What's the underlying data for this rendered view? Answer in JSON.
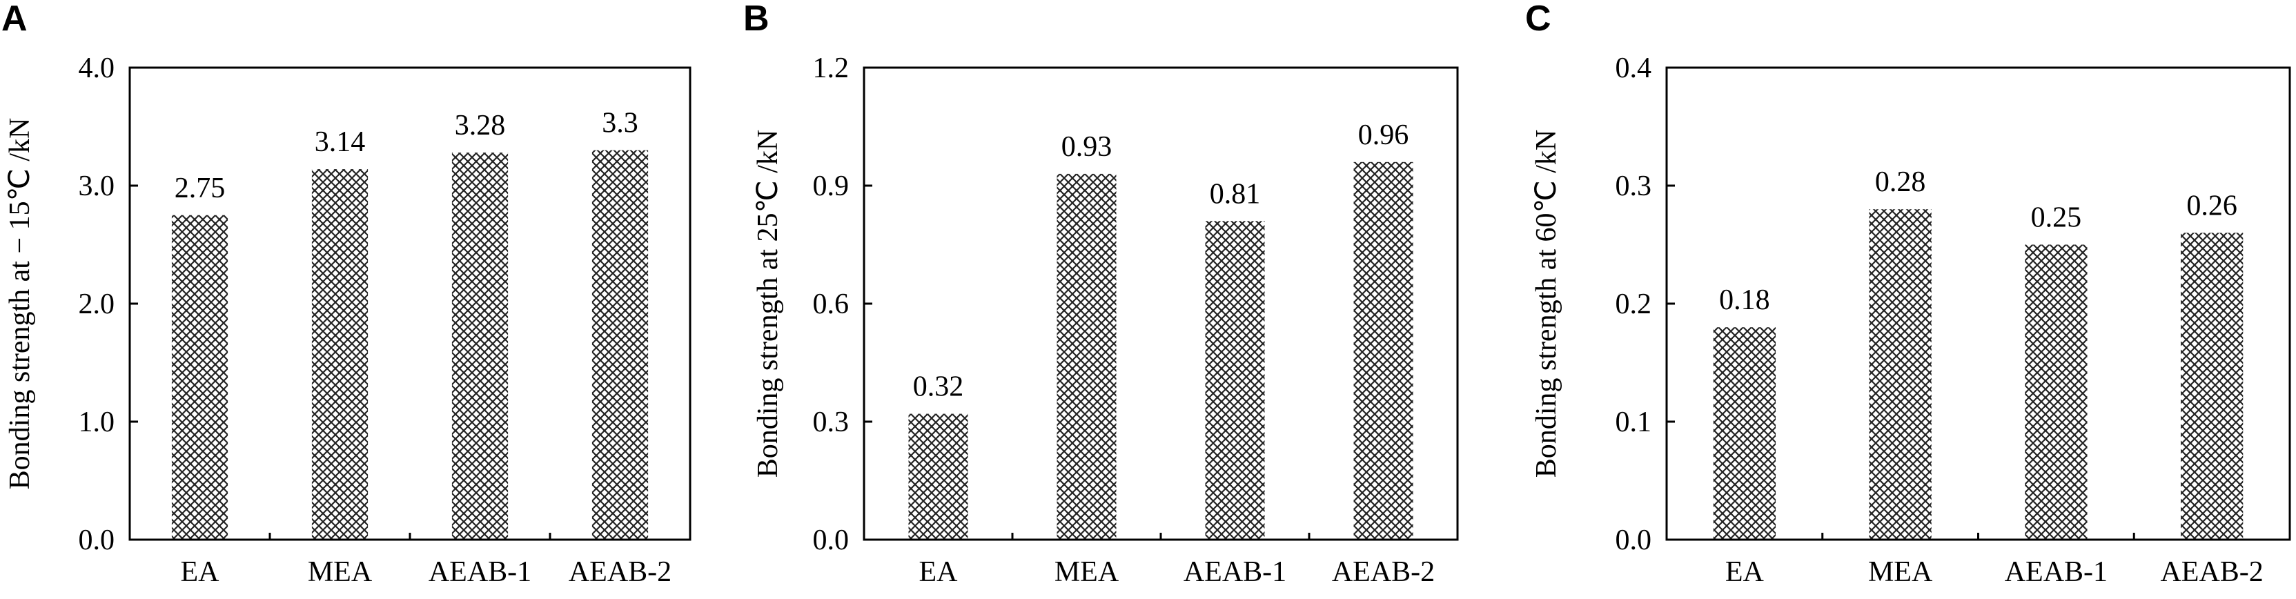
{
  "chart_data": [
    {
      "panel": "A",
      "type": "bar",
      "ylabel": "Bonding strength at − 15℃ /kN",
      "ylim": [
        0,
        4.0
      ],
      "yticks": [
        "0.0",
        "1.0",
        "2.0",
        "3.0",
        "4.0"
      ],
      "categories": [
        "EA",
        "MEA",
        "AEAB-1",
        "AEAB-2"
      ],
      "values": [
        2.75,
        3.14,
        3.28,
        3.3
      ],
      "value_labels": [
        "2.75",
        "3.14",
        "3.28",
        "3.3"
      ]
    },
    {
      "panel": "B",
      "type": "bar",
      "ylabel": "Bonding strength at 25℃ /kN",
      "ylim": [
        0,
        1.2
      ],
      "yticks": [
        "0.0",
        "0.3",
        "0.6",
        "0.9",
        "1.2"
      ],
      "categories": [
        "EA",
        "MEA",
        "AEAB-1",
        "AEAB-2"
      ],
      "values": [
        0.32,
        0.93,
        0.81,
        0.96
      ],
      "value_labels": [
        "0.32",
        "0.93",
        "0.81",
        "0.96"
      ]
    },
    {
      "panel": "C",
      "type": "bar",
      "ylabel": "Bonding strength at 60℃ /kN",
      "ylim": [
        0,
        0.4
      ],
      "yticks": [
        "0.0",
        "0.1",
        "0.2",
        "0.3",
        "0.4"
      ],
      "categories": [
        "EA",
        "MEA",
        "AEAB-1",
        "AEAB-2"
      ],
      "values": [
        0.18,
        0.28,
        0.25,
        0.26
      ],
      "value_labels": [
        "0.18",
        "0.28",
        "0.25",
        "0.26"
      ]
    }
  ]
}
